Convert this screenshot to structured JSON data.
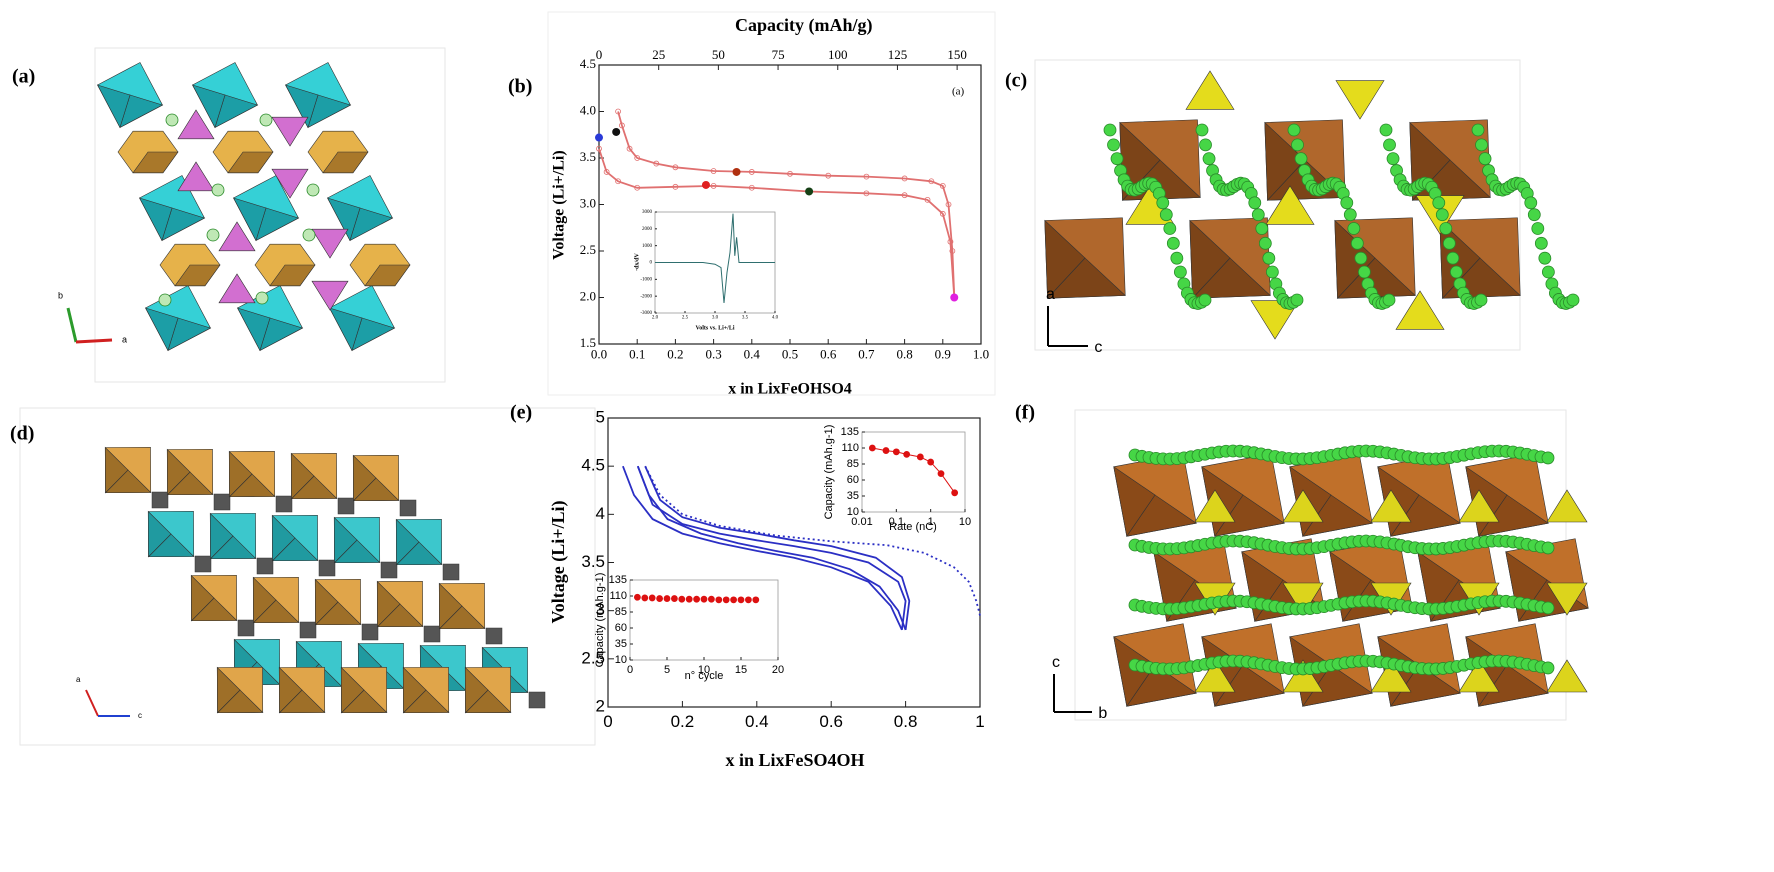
{
  "panels": {
    "labels": [
      "(a)",
      "(b)",
      "(c)",
      "(d)",
      "(e)",
      "(f)"
    ],
    "axes": {
      "a": [
        "b",
        "a"
      ],
      "c": [
        "a",
        "c"
      ],
      "d": [
        "a",
        "c"
      ],
      "f": [
        "c",
        "b"
      ]
    }
  },
  "chart_data": [
    {
      "type": "line",
      "x2label": "Capacity (mAh/g)",
      "xlabel": "x in LixFeOHSO4",
      "ylabel": "Voltage (Li+/Li)",
      "annotation": "(a)",
      "xlim": [
        0,
        1
      ],
      "xticks": [
        {
          "value": 0,
          "label": "0.0"
        },
        0.1,
        0.2,
        0.3,
        0.4,
        0.5,
        0.6,
        0.7,
        0.8,
        0.9,
        {
          "value": 1,
          "label": "1.0"
        }
      ],
      "x2lim": [
        0,
        160
      ],
      "x2ticks": [
        0,
        25,
        50,
        75,
        100,
        125,
        150
      ],
      "ylim": [
        1.5,
        4.5
      ],
      "yticks": [
        1.5,
        {
          "value": 2,
          "label": "2.0"
        },
        2.5,
        {
          "value": 3,
          "label": "3.0"
        },
        3.5,
        {
          "value": 4,
          "label": "4.0"
        },
        4.5
      ],
      "markers": "open-circle",
      "series": [
        {
          "color": "#e07070",
          "x": [
            0.05,
            0.06,
            0.08,
            0.1,
            0.15,
            0.2,
            0.3,
            0.4,
            0.5,
            0.6,
            0.7,
            0.8,
            0.87,
            0.9,
            0.915,
            0.925,
            0.93
          ],
          "values": [
            4.0,
            3.85,
            3.6,
            3.5,
            3.44,
            3.4,
            3.36,
            3.35,
            3.33,
            3.31,
            3.3,
            3.28,
            3.25,
            3.2,
            3.0,
            2.5,
            2.0
          ]
        },
        {
          "color": "#e07070",
          "x": [
            0.0,
            0.02,
            0.05,
            0.1,
            0.2,
            0.3,
            0.4,
            0.55,
            0.7,
            0.8,
            0.86,
            0.9,
            0.92,
            0.93
          ],
          "values": [
            3.6,
            3.35,
            3.25,
            3.18,
            3.19,
            3.2,
            3.18,
            3.14,
            3.12,
            3.1,
            3.05,
            2.9,
            2.6,
            2.0
          ]
        }
      ],
      "points": {
        "x": [
          0.0,
          0.045,
          0.28,
          0.36,
          0.55,
          0.93
        ],
        "values": [
          3.72,
          3.78,
          3.21,
          3.35,
          3.14,
          2.0
        ],
        "colors": [
          "#2a3ad8",
          "#111111",
          "#e02020",
          "#b03010",
          "#154015",
          "#e020e0"
        ]
      }
    },
    {
      "type": "line",
      "xlabel": "Volts vs. Li+/Li",
      "ylabel": "-dx/dV",
      "xlim": [
        2,
        4
      ],
      "xticks": [
        {
          "value": 2,
          "label": "2.0"
        },
        2.5,
        {
          "value": 3,
          "label": "3.0"
        },
        3.5,
        {
          "value": 4,
          "label": "4.0"
        }
      ],
      "ylim": [
        -3000,
        3000
      ],
      "yticks": [
        -3000,
        -2000,
        -1000,
        0,
        1000,
        2000,
        3000
      ],
      "series": [
        {
          "color": "#2f6f6f",
          "x": [
            2.0,
            2.8,
            3.0,
            3.1,
            3.15,
            3.2,
            3.25,
            3.3,
            3.33,
            3.36,
            3.4,
            3.5,
            4.0
          ],
          "values": [
            0,
            0,
            -100,
            -300,
            -2400,
            -600,
            600,
            2900,
            400,
            1500,
            0,
            0,
            0
          ]
        }
      ]
    },
    {
      "type": "line",
      "xlabel": "x in LixFeSO4OH",
      "ylabel": "Voltage (Li+/Li)",
      "xlim": [
        0,
        1
      ],
      "xticks": [
        0,
        0.2,
        0.4,
        0.6,
        0.8,
        1
      ],
      "ylim": [
        2,
        5
      ],
      "yticks": [
        2,
        2.5,
        3,
        3.5,
        4,
        4.5,
        5
      ],
      "series": [
        {
          "color": "#2b2fc4",
          "x": [
            0.04,
            0.07,
            0.12,
            0.2,
            0.3,
            0.4,
            0.5,
            0.6,
            0.7,
            0.76,
            0.79
          ],
          "values": [
            4.5,
            4.2,
            3.95,
            3.8,
            3.7,
            3.62,
            3.55,
            3.45,
            3.3,
            3.05,
            2.8
          ]
        },
        {
          "color": "#2b2fc4",
          "x": [
            0.79,
            0.8,
            0.78,
            0.7,
            0.6,
            0.5,
            0.4,
            0.3,
            0.2,
            0.12,
            0.08
          ],
          "values": [
            2.8,
            3.1,
            3.3,
            3.5,
            3.6,
            3.67,
            3.73,
            3.8,
            3.9,
            4.1,
            4.5
          ]
        },
        {
          "color": "#2b2fc4",
          "x": [
            0.08,
            0.11,
            0.16,
            0.25,
            0.35,
            0.45,
            0.55,
            0.65,
            0.73,
            0.78,
            0.8
          ],
          "values": [
            4.5,
            4.2,
            3.95,
            3.8,
            3.7,
            3.62,
            3.55,
            3.43,
            3.25,
            3.0,
            2.8
          ]
        },
        {
          "color": "#2b2fc4",
          "x": [
            0.8,
            0.81,
            0.79,
            0.72,
            0.6,
            0.5,
            0.4,
            0.3,
            0.2,
            0.14,
            0.1
          ],
          "values": [
            2.8,
            3.1,
            3.35,
            3.55,
            3.67,
            3.73,
            3.8,
            3.86,
            3.97,
            4.15,
            4.5
          ]
        },
        {
          "color": "#2b2fc4",
          "dashed": true,
          "x": [
            0.1,
            0.14,
            0.2,
            0.3,
            0.45,
            0.6,
            0.75,
            0.85,
            0.93,
            0.97,
            0.99,
            1.0
          ],
          "values": [
            4.5,
            4.2,
            4.0,
            3.88,
            3.78,
            3.72,
            3.68,
            3.6,
            3.45,
            3.3,
            3.1,
            2.95
          ]
        }
      ]
    },
    {
      "type": "scatter",
      "xlabel": "Rate (nC)",
      "ylabel": "Capacity (mAh.g-1)",
      "log_x": true,
      "connect": true,
      "xlim": [
        0.01,
        10
      ],
      "xticks": [
        0.01,
        0.1,
        1,
        10
      ],
      "ylim": [
        10,
        135
      ],
      "yticks": [
        10,
        35,
        60,
        85,
        110,
        135
      ],
      "series": [
        {
          "color": "#dd1111",
          "x": [
            0.02,
            0.05,
            0.1,
            0.2,
            0.5,
            1,
            2,
            5
          ],
          "values": [
            110,
            106,
            104,
            100,
            96,
            88,
            70,
            40
          ]
        }
      ]
    },
    {
      "type": "scatter",
      "xlabel": "n° cycle",
      "ylabel": "Capacity (mAh.g-1)",
      "xlim": [
        0,
        20
      ],
      "xticks": [
        0,
        5,
        10,
        15,
        20
      ],
      "ylim": [
        10,
        135
      ],
      "yticks": [
        10,
        35,
        60,
        85,
        110,
        135
      ],
      "series": [
        {
          "color": "#dd1111",
          "x": [
            1,
            2,
            3,
            4,
            5,
            6,
            7,
            8,
            9,
            10,
            11,
            12,
            13,
            14,
            15,
            16,
            17
          ],
          "values": [
            108,
            107,
            107,
            106,
            106,
            106,
            105,
            105,
            105,
            105,
            105,
            104,
            104,
            104,
            104,
            104,
            104
          ]
        }
      ]
    }
  ]
}
